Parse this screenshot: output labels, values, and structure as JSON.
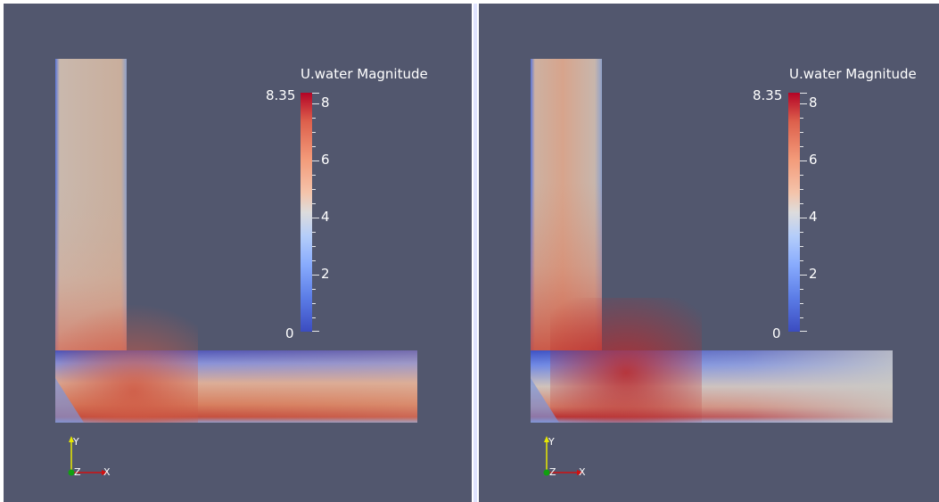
{
  "views": [
    {
      "id": "left",
      "legend": {
        "title": "U.water Magnitude",
        "range_max_label": "8.35",
        "range_min_label": "0",
        "tick_labels": [
          "8",
          "6",
          "4",
          "2"
        ]
      },
      "axes": {
        "y_label": "Y",
        "z_label": "Z",
        "x_label": "X"
      }
    },
    {
      "id": "right",
      "legend": {
        "title": "U.water Magnitude",
        "range_max_label": "8.35",
        "range_min_label": "0",
        "tick_labels": [
          "8",
          "6",
          "4",
          "2"
        ]
      },
      "axes": {
        "y_label": "Y",
        "z_label": "Z",
        "x_label": "X"
      }
    }
  ],
  "colors": {
    "viewport_background": "#52576e",
    "divider": "#dfe3ff",
    "colormap_high": "#b40426",
    "colormap_mid": "#dddcdc",
    "colormap_low": "#3b4cc0"
  }
}
